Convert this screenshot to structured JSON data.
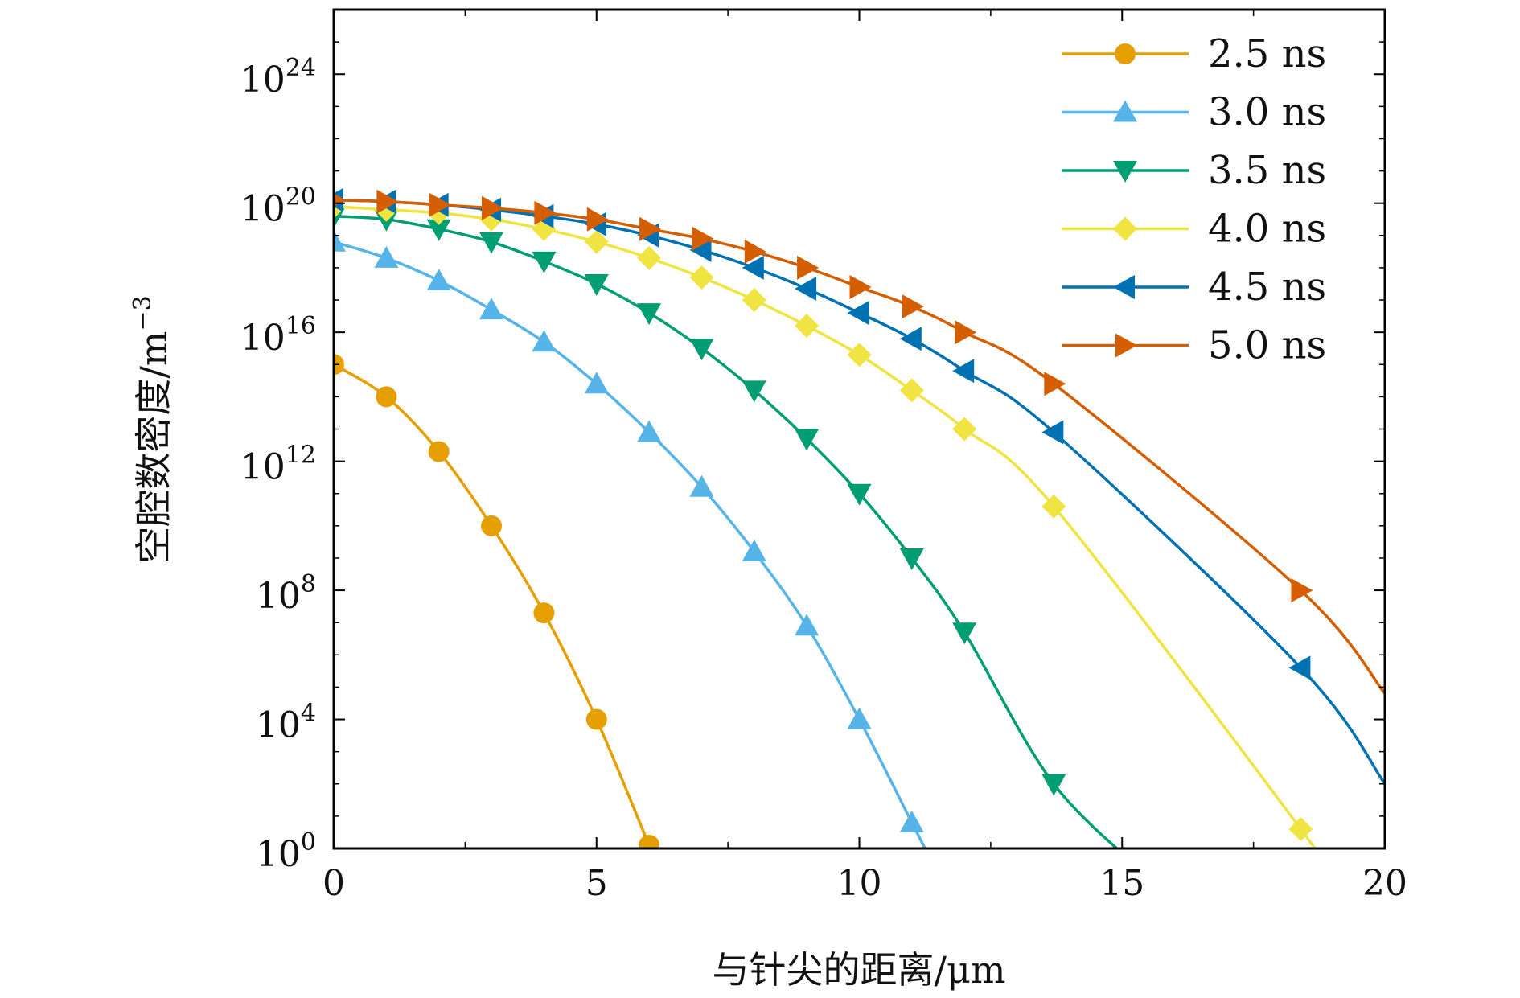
{
  "chart_data": {
    "type": "line",
    "title": "",
    "xlabel": "与针尖的距离/μm",
    "ylabel": "空腔数密度/m",
    "ylabel_sup": "−3",
    "xlim": [
      0,
      20
    ],
    "y_log10_lim": [
      0,
      26
    ],
    "y_scale": "log",
    "grid": false,
    "legend_position": "top-right",
    "x_ticks": [
      {
        "value": 0,
        "label": "0"
      },
      {
        "value": 5,
        "label": "5"
      },
      {
        "value": 10,
        "label": "10"
      },
      {
        "value": 15,
        "label": "15"
      },
      {
        "value": 20,
        "label": "20"
      }
    ],
    "y_ticks": [
      {
        "exp": 0,
        "base": "10",
        "sup": "0"
      },
      {
        "exp": 4,
        "base": "10",
        "sup": "4"
      },
      {
        "exp": 8,
        "base": "10",
        "sup": "8"
      },
      {
        "exp": 12,
        "base": "10",
        "sup": "12"
      },
      {
        "exp": 16,
        "base": "10",
        "sup": "16"
      },
      {
        "exp": 20,
        "base": "10",
        "sup": "20"
      },
      {
        "exp": 24,
        "base": "10",
        "sup": "24"
      }
    ],
    "series": [
      {
        "name": "2.5 ns",
        "color": "#E69F00",
        "marker": "circle",
        "x": [
          0,
          1,
          2,
          3,
          4,
          5,
          6,
          6.05
        ],
        "y_log10": [
          15.0,
          14.0,
          12.3,
          10.0,
          7.3,
          4.0,
          0.1,
          0
        ],
        "marker_x": [
          0,
          1,
          2,
          3,
          4,
          5,
          6
        ]
      },
      {
        "name": "3.0 ns",
        "color": "#56B4E9",
        "marker": "triangle-up",
        "x": [
          0,
          1,
          2,
          3,
          4,
          5,
          6,
          7,
          8,
          9,
          10,
          11,
          11.25
        ],
        "y_log10": [
          18.8,
          18.3,
          17.6,
          16.7,
          15.7,
          14.4,
          12.9,
          11.2,
          9.2,
          6.9,
          4.0,
          0.8,
          0
        ],
        "marker_x": [
          0,
          1,
          2,
          3,
          4,
          5,
          6,
          7,
          8,
          9,
          10,
          11
        ]
      },
      {
        "name": "3.5 ns",
        "color": "#009E73",
        "marker": "triangle-down",
        "x": [
          0,
          1,
          2,
          3,
          4,
          5,
          6,
          7,
          8,
          9,
          10,
          11,
          12,
          13.7,
          15.6
        ],
        "y_log10": [
          19.6,
          19.5,
          19.2,
          18.8,
          18.2,
          17.5,
          16.6,
          15.5,
          14.2,
          12.7,
          11.0,
          9.0,
          6.7,
          2.0,
          -1.0
        ],
        "marker_x": [
          0,
          1,
          2,
          3,
          4,
          5,
          6,
          7,
          8,
          9,
          10,
          11,
          12,
          13.7
        ]
      },
      {
        "name": "4.0 ns",
        "color": "#F0E442",
        "marker": "diamond",
        "x": [
          0,
          1,
          2,
          3,
          4,
          5,
          6,
          7,
          8,
          9,
          10,
          11,
          12,
          13.7,
          18.4,
          18.55
        ],
        "y_log10": [
          19.9,
          19.8,
          19.7,
          19.5,
          19.2,
          18.8,
          18.3,
          17.7,
          17.0,
          16.2,
          15.3,
          14.2,
          13.0,
          10.6,
          0.6,
          0
        ],
        "marker_x": [
          0,
          1,
          2,
          3,
          4,
          5,
          6,
          7,
          8,
          9,
          10,
          11,
          12,
          13.7,
          18.4
        ]
      },
      {
        "name": "4.5 ns",
        "color": "#0072B2",
        "marker": "triangle-left",
        "x": [
          0,
          1,
          2,
          3,
          4,
          5,
          6,
          7,
          8,
          9,
          10,
          11,
          12,
          13.7,
          18.4,
          20
        ],
        "y_log10": [
          20.1,
          20.05,
          19.95,
          19.8,
          19.6,
          19.35,
          19.0,
          18.55,
          18.0,
          17.35,
          16.6,
          15.8,
          14.8,
          12.9,
          5.6,
          2.0
        ],
        "marker_x": [
          0,
          1,
          2,
          3,
          4,
          5,
          6,
          7,
          8,
          9,
          10,
          11,
          12,
          13.7,
          18.4
        ]
      },
      {
        "name": "5.0 ns",
        "color": "#D55E00",
        "marker": "triangle-right",
        "x": [
          0,
          1,
          2,
          3,
          4,
          5,
          6,
          7,
          8,
          9,
          10,
          11,
          12,
          13.7,
          18.4,
          20
        ],
        "y_log10": [
          20.1,
          20.05,
          19.95,
          19.85,
          19.7,
          19.5,
          19.2,
          18.9,
          18.5,
          18.0,
          17.4,
          16.8,
          16.0,
          14.4,
          8.0,
          4.8
        ],
        "marker_x": [
          0,
          1,
          2,
          3,
          4,
          5,
          6,
          7,
          8,
          9,
          10,
          11,
          12,
          13.7,
          18.4
        ]
      }
    ]
  }
}
